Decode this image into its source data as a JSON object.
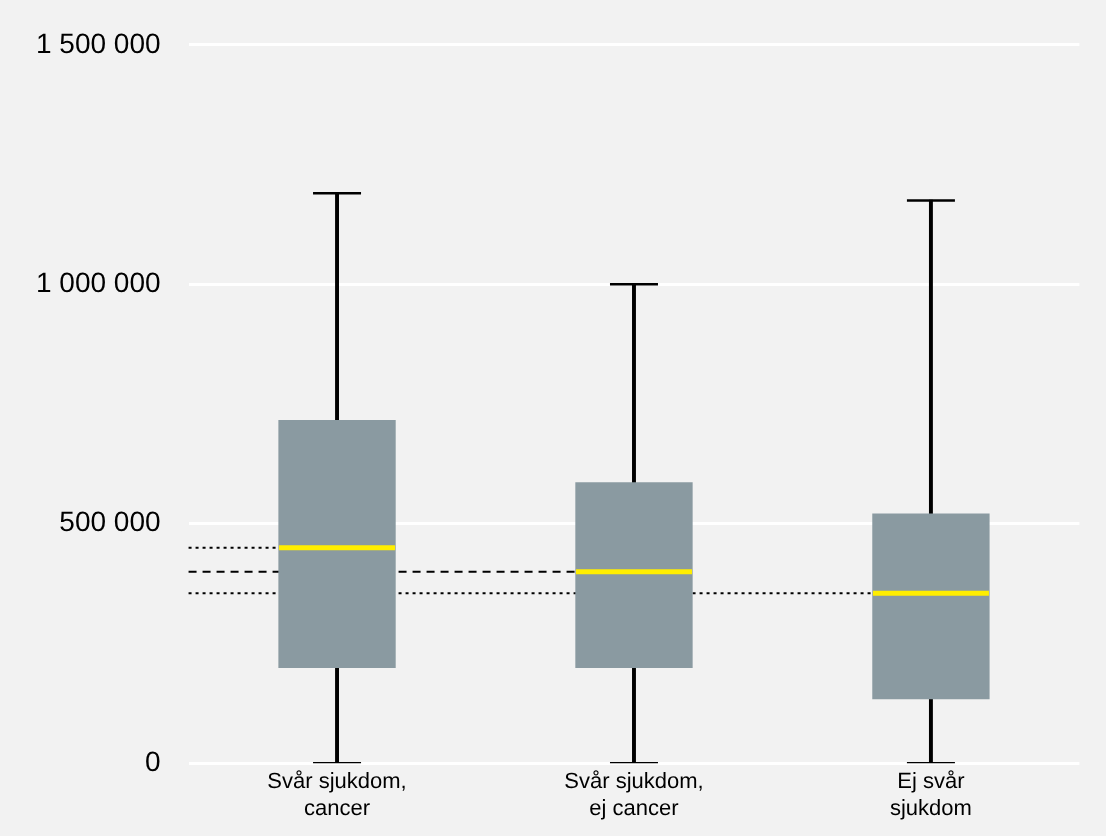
{
  "chart_data": {
    "type": "box",
    "categories": [
      "Svår sjukdom, cancer",
      "Svår sjukdom, ej cancer",
      "Ej svår sjukdom"
    ],
    "color": "#8a9aa1",
    "boxes": [
      {
        "low": 0,
        "q1": 200000,
        "median": 450000,
        "q3": 715000,
        "high": 1190000
      },
      {
        "low": 0,
        "q1": 200000,
        "median": 400000,
        "q3": 585000,
        "high": 1000000
      },
      {
        "low": 0,
        "q1": 135000,
        "median": 355000,
        "q3": 520000,
        "high": 1175000
      }
    ],
    "ylim": [
      0,
      1500000
    ],
    "yticks": [
      {
        "value": 0,
        "label": "0"
      },
      {
        "value": 500000,
        "label": "500 000"
      },
      {
        "value": 1000000,
        "label": "1 000 000"
      },
      {
        "value": 1500000,
        "label": "1 500 000"
      }
    ],
    "grid": "y",
    "ref_lines": [
      {
        "axis": "y",
        "value": 450000,
        "line_style": "dotted"
      },
      {
        "axis": "y",
        "value": 400000,
        "line_style": "dashed"
      },
      {
        "axis": "y",
        "value": 355000,
        "line_style": "dotted"
      }
    ]
  }
}
